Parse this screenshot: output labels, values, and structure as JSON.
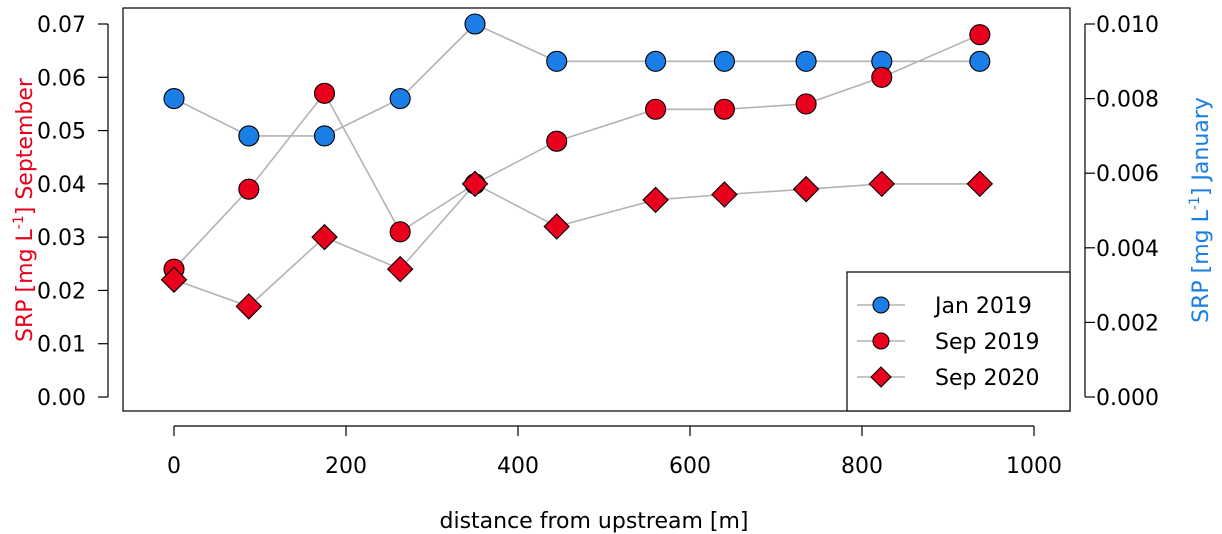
{
  "colors": {
    "red": "#e8001c",
    "blue": "#1a7ee6",
    "line": "#b3b3b3",
    "axis": "#000000"
  },
  "chart_data": {
    "type": "scatter",
    "xlabel": "distance from upstream [m]",
    "ylabel_left": {
      "prefix": "SRP [mg L",
      "sup": "-1",
      "suffix": "] September"
    },
    "ylabel_right": {
      "prefix": "SRP [mg L",
      "sup": "-1",
      "suffix": "] January"
    },
    "xlim": [
      0,
      1000
    ],
    "ylim_left": [
      0.0,
      0.07
    ],
    "ylim_right": [
      0.0,
      0.01
    ],
    "x_ticks": [
      0,
      200,
      400,
      600,
      800,
      1000
    ],
    "x_tick_labels": [
      "0",
      "200",
      "400",
      "600",
      "800",
      "1000"
    ],
    "y_left_ticks": [
      0.0,
      0.01,
      0.02,
      0.03,
      0.04,
      0.05,
      0.06,
      0.07
    ],
    "y_left_tick_labels": [
      "0.00",
      "0.01",
      "0.02",
      "0.03",
      "0.04",
      "0.05",
      "0.06",
      "0.07"
    ],
    "y_right_ticks": [
      0.0,
      0.002,
      0.004,
      0.006,
      0.008,
      0.01
    ],
    "y_right_tick_labels": [
      "0.000",
      "0.002",
      "0.004",
      "0.006",
      "0.008",
      "0.010"
    ],
    "legend_position": "bottom-right",
    "series": [
      {
        "name": "Jan 2019",
        "axis": "right",
        "marker": "circle",
        "color": "blue",
        "x": [
          0,
          87,
          175,
          263,
          350,
          445,
          560,
          640,
          735,
          823,
          937
        ],
        "y": [
          0.008,
          0.007,
          0.007,
          0.008,
          0.01,
          0.009,
          0.009,
          0.009,
          0.009,
          0.009,
          0.009
        ]
      },
      {
        "name": "Sep 2019",
        "axis": "left",
        "marker": "circle",
        "color": "red",
        "x": [
          0,
          87,
          175,
          263,
          350,
          445,
          560,
          640,
          735,
          823,
          937
        ],
        "y": [
          0.024,
          0.039,
          0.057,
          0.031,
          0.04,
          0.048,
          0.054,
          0.054,
          0.055,
          0.06,
          0.068
        ]
      },
      {
        "name": "Sep 2020",
        "axis": "left",
        "marker": "diamond",
        "color": "red",
        "x": [
          0,
          87,
          175,
          263,
          350,
          445,
          560,
          640,
          735,
          823,
          937
        ],
        "y": [
          0.022,
          0.017,
          0.03,
          0.024,
          0.04,
          0.032,
          0.037,
          0.038,
          0.039,
          0.04,
          0.04
        ]
      }
    ]
  }
}
